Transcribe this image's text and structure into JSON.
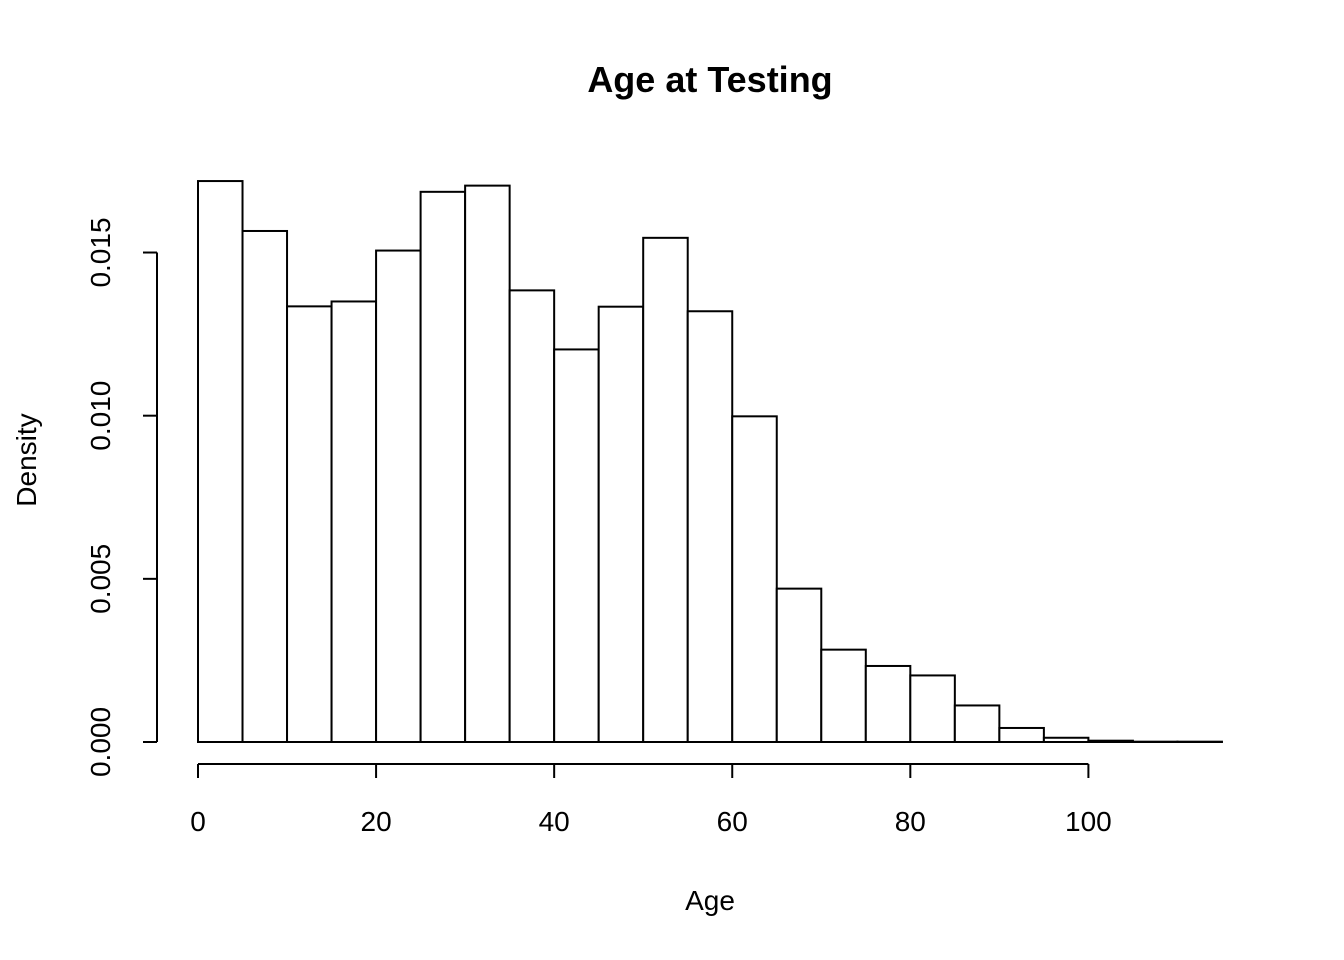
{
  "chart_data": {
    "type": "bar",
    "title": "Age at Testing",
    "xlabel": "Age",
    "ylabel": "Density",
    "bin_edges": [
      0,
      5,
      10,
      15,
      20,
      25,
      30,
      35,
      40,
      45,
      50,
      55,
      60,
      65,
      70,
      75,
      80,
      85,
      90,
      95,
      100,
      105,
      110,
      115
    ],
    "values": [
      0.01719,
      0.01566,
      0.01335,
      0.0135,
      0.01506,
      0.01686,
      0.01705,
      0.01384,
      0.01203,
      0.01334,
      0.01545,
      0.0132,
      0.00998,
      0.0047,
      0.00283,
      0.00233,
      0.00204,
      0.00112,
      0.00043,
      0.00013,
      4e-05,
      1e-05,
      1e-05
    ],
    "xlim": [
      0,
      115
    ],
    "ylim": [
      0,
      0.0175
    ],
    "xticks": [
      0,
      20,
      40,
      60,
      80,
      100
    ],
    "xtick_labels": [
      "0",
      "20",
      "40",
      "60",
      "80",
      "100"
    ],
    "yticks": [
      0,
      0.005,
      0.01,
      0.015
    ],
    "ytick_labels": [
      "0.000",
      "0.005",
      "0.010",
      "0.015"
    ],
    "grid": false,
    "bar_fill": "#ffffff",
    "bar_stroke": "#000000"
  }
}
